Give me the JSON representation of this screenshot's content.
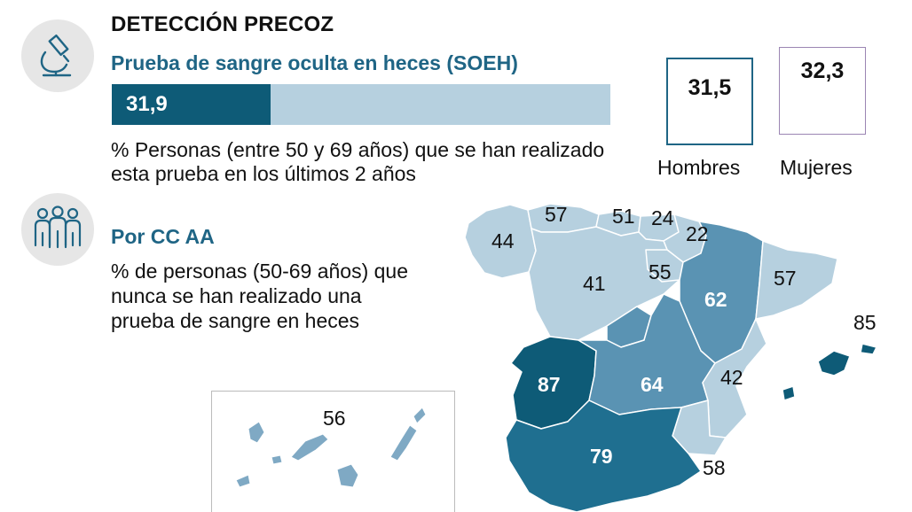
{
  "header": {
    "title": "DETECCIÓN PRECOZ",
    "subtitle": "Prueba de sangre oculta en heces (SOEH)"
  },
  "overall": {
    "value_label": "31,9",
    "value_percent": 31.9,
    "bar_fraction": 0.319,
    "description": "% Personas (entre 50 y 69 años) que se han realizado esta prueba en los últimos 2 años"
  },
  "gender": {
    "men": {
      "label": "Hombres",
      "value": "31,5"
    },
    "women": {
      "label": "Mujeres",
      "value": "32,3"
    }
  },
  "regions_section": {
    "title": "Por CC AA",
    "description": "% de personas (50-69 años) que nunca se han realizado una prueba de sangre en heces"
  },
  "icons": {
    "section1": "microscope-icon",
    "section2": "people-group-icon"
  },
  "colors": {
    "dark": "#0e5b77",
    "mid": "#5a93b3",
    "light": "#b6d0df",
    "title_blue": "#1f6585"
  },
  "regions": [
    {
      "id": "galicia",
      "value": "44"
    },
    {
      "id": "asturias",
      "value": "57"
    },
    {
      "id": "cantabria",
      "value": "51"
    },
    {
      "id": "pais-vasco",
      "value": "24"
    },
    {
      "id": "navarra",
      "value": "22"
    },
    {
      "id": "castilla-leon",
      "value": "41"
    },
    {
      "id": "la-rioja",
      "value": "55"
    },
    {
      "id": "aragon",
      "value": "62"
    },
    {
      "id": "cataluna",
      "value": "57"
    },
    {
      "id": "baleares",
      "value": "85"
    },
    {
      "id": "extremadura",
      "value": "87"
    },
    {
      "id": "castilla-la-mancha",
      "value": "64"
    },
    {
      "id": "valencia",
      "value": "42"
    },
    {
      "id": "andalucia",
      "value": "79"
    },
    {
      "id": "murcia",
      "value": "58"
    },
    {
      "id": "canarias",
      "value": "56"
    }
  ]
}
